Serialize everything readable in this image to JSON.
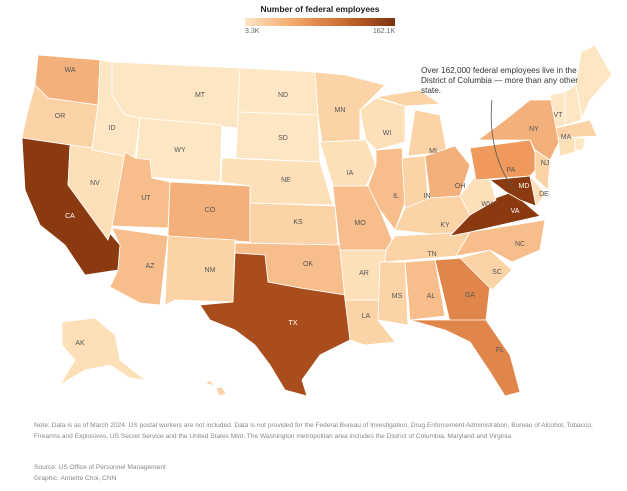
{
  "legend": {
    "title": "Number of federal employees",
    "min_label": "3.3K",
    "max_label": "162.1K",
    "min_color": "#fde6c4",
    "max_color": "#7c3210"
  },
  "annotation": "Over 162,000 federal employees live in the District of Columbia — more than any other state.",
  "note": "Note: Data is as of March 2024. US postal workers are not included. Data is not provided for the Federal Bureau of Investigation, Drug Enforcement Administration, Bureau of Alcohol, Tobacco, Firearms and Explosives, US Secret Service and the United States Mint. The Washington metropolitan area includes the District of Columbia, Maryland and Virginia.",
  "source": "Source: US Office of Personnel Management",
  "credit": "Graphic: Annette Choi, CNN",
  "states": [
    {
      "abbr": "WA",
      "color": "#f4b07a"
    },
    {
      "abbr": "OR",
      "color": "#fbd3a6"
    },
    {
      "abbr": "CA",
      "color": "#8b3a0f"
    },
    {
      "abbr": "NV",
      "color": "#fde0b8"
    },
    {
      "abbr": "ID",
      "color": "#fde6c4"
    },
    {
      "abbr": "MT",
      "color": "#fde6c4"
    },
    {
      "abbr": "WY",
      "color": "#fde6c4"
    },
    {
      "abbr": "UT",
      "color": "#f7bd8a"
    },
    {
      "abbr": "CO",
      "color": "#f4b07a"
    },
    {
      "abbr": "AZ",
      "color": "#f7bd8a"
    },
    {
      "abbr": "NM",
      "color": "#fbd3a6"
    },
    {
      "abbr": "ND",
      "color": "#fde6c4"
    },
    {
      "abbr": "SD",
      "color": "#fde6c4"
    },
    {
      "abbr": "NE",
      "color": "#fde0b8"
    },
    {
      "abbr": "KS",
      "color": "#fbd3a6"
    },
    {
      "abbr": "OK",
      "color": "#f7bd8a"
    },
    {
      "abbr": "TX",
      "color": "#a94d1c"
    },
    {
      "abbr": "MN",
      "color": "#fbd3a6"
    },
    {
      "abbr": "IA",
      "color": "#fde0b8"
    },
    {
      "abbr": "MO",
      "color": "#f7bd8a"
    },
    {
      "abbr": "AR",
      "color": "#fde0b8"
    },
    {
      "abbr": "LA",
      "color": "#fbd3a6"
    },
    {
      "abbr": "WI",
      "color": "#fde0b8"
    },
    {
      "abbr": "IL",
      "color": "#f7bd8a"
    },
    {
      "abbr": "MI",
      "color": "#fbd3a6"
    },
    {
      "abbr": "IN",
      "color": "#fbd3a6"
    },
    {
      "abbr": "OH",
      "color": "#f4b07a"
    },
    {
      "abbr": "KY",
      "color": "#fbd3a6"
    },
    {
      "abbr": "TN",
      "color": "#fbd3a6"
    },
    {
      "abbr": "MS",
      "color": "#fbd3a6"
    },
    {
      "abbr": "AL",
      "color": "#f7bd8a"
    },
    {
      "abbr": "GA",
      "color": "#e0864a"
    },
    {
      "abbr": "FL",
      "color": "#e0864a"
    },
    {
      "abbr": "SC",
      "color": "#fbd3a6"
    },
    {
      "abbr": "NC",
      "color": "#f7bd8a"
    },
    {
      "abbr": "VA",
      "color": "#8b3a0f"
    },
    {
      "abbr": "WV",
      "color": "#fde0b8"
    },
    {
      "abbr": "PA",
      "color": "#ef9a5c"
    },
    {
      "abbr": "NY",
      "color": "#f4b07a"
    },
    {
      "abbr": "MD",
      "color": "#8b3a0f"
    },
    {
      "abbr": "DE",
      "color": "#fde0b8"
    },
    {
      "abbr": "NJ",
      "color": "#fbd3a6"
    },
    {
      "abbr": "VT",
      "color": "#fde6c4"
    },
    {
      "abbr": "NH",
      "color": "#fde6c4"
    },
    {
      "abbr": "MA",
      "color": "#fbd3a6"
    },
    {
      "abbr": "CT",
      "color": "#fde0b8"
    },
    {
      "abbr": "RI",
      "color": "#fde6c4"
    },
    {
      "abbr": "ME",
      "color": "#fde6c4"
    },
    {
      "abbr": "AK",
      "color": "#fde0b8"
    },
    {
      "abbr": "HI",
      "color": "#fbd3a6"
    }
  ]
}
